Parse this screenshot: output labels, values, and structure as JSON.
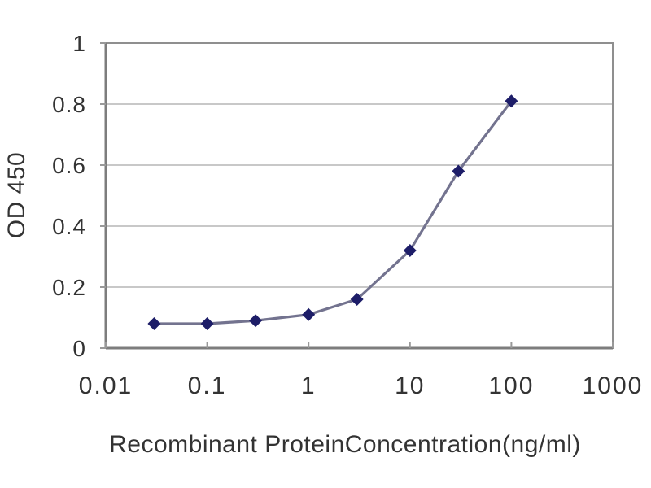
{
  "chart_data": {
    "type": "line",
    "title": "",
    "xlabel": "Recombinant ProteinConcentration(ng/ml)",
    "ylabel": "OD 450",
    "x_scale": "log",
    "xlim": [
      0.01,
      1000
    ],
    "ylim": [
      0,
      1
    ],
    "x": [
      0.03,
      0.1,
      0.3,
      1,
      3,
      10,
      30,
      100
    ],
    "series": [
      {
        "name": "OD 450",
        "values": [
          0.08,
          0.08,
          0.09,
          0.11,
          0.16,
          0.32,
          0.58,
          0.81
        ]
      }
    ],
    "x_ticks": [
      0.01,
      0.1,
      1,
      10,
      100,
      1000
    ],
    "x_tick_labels": [
      "0.01",
      "0.1",
      "1",
      "10",
      "100",
      "1000"
    ],
    "y_ticks": [
      0,
      0.2,
      0.4,
      0.6,
      0.8,
      1
    ],
    "y_tick_labels": [
      "0",
      "0.2",
      "0.4",
      "0.6",
      "0.8",
      "1"
    ],
    "grid": "horizontal",
    "legend": "none",
    "marker": "diamond",
    "colors": {
      "marker": "#1d1d68",
      "line": "#73738f",
      "grid": "#c8c8c8",
      "frame": "#8f8f8f",
      "axis": "#7d7d7d",
      "tick": "#999999",
      "text": "#333333",
      "background": "#ffffff"
    }
  }
}
